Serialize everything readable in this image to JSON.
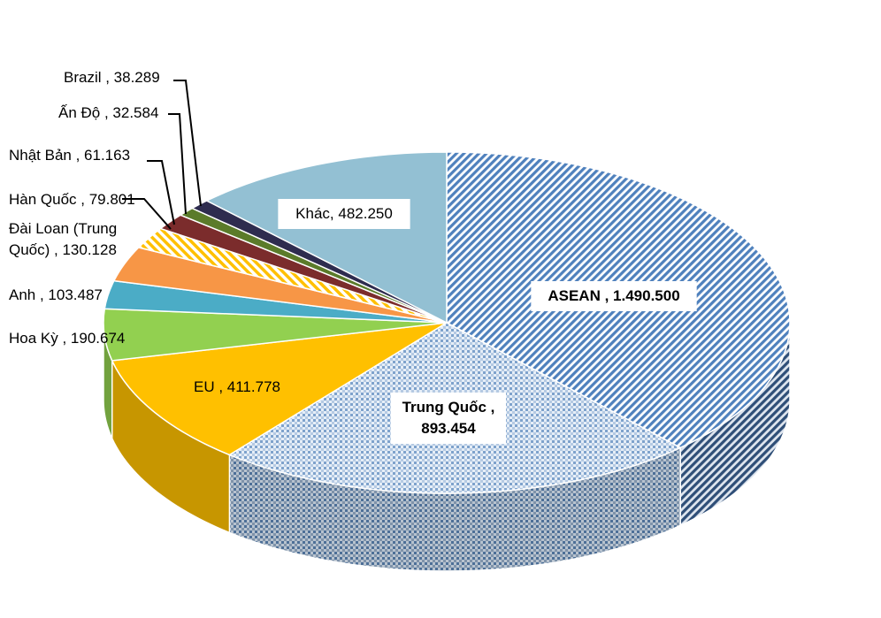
{
  "chart_data": {
    "type": "pie",
    "style": "3d-pie",
    "slices": [
      {
        "label": "ASEAN",
        "value": 1490500,
        "display": "1.490.500",
        "color": "#4f81bd",
        "pattern": "diagonal-hatch",
        "label_style": "bold-box"
      },
      {
        "label": "Trung Quốc",
        "value": 893454,
        "display": "893.454",
        "color": "#9bb7d6",
        "pattern": "dotted-grid",
        "label_style": "bold-box"
      },
      {
        "label": "EU",
        "value": 411778,
        "display": "411.778",
        "color": "#ffc000",
        "pattern": "solid",
        "label_style": "inside"
      },
      {
        "label": "Hoa Kỳ",
        "value": 190674,
        "display": "190.674",
        "color": "#92d050",
        "pattern": "solid",
        "label_style": "outside"
      },
      {
        "label": "Anh",
        "value": 103487,
        "display": "103.487",
        "color": "#4bacc6",
        "pattern": "solid",
        "label_style": "outside"
      },
      {
        "label": "Đài Loan (Trung Quốc)",
        "value": 130128,
        "display": "130.128",
        "color": "#f79646",
        "pattern": "solid",
        "label_style": "outside"
      },
      {
        "label": "Hàn Quốc",
        "value": 79801,
        "display": "79.801",
        "color": "#ffc000",
        "pattern": "stripe",
        "label_style": "leader"
      },
      {
        "label": "Nhật Bản",
        "value": 61163,
        "display": "61.163",
        "color": "#7b2c2c",
        "pattern": "solid",
        "label_style": "leader"
      },
      {
        "label": "Ấn Độ",
        "value": 32584,
        "display": "32.584",
        "color": "#5b7b2a",
        "pattern": "solid",
        "label_style": "leader"
      },
      {
        "label": "Brazil",
        "value": 38289,
        "display": "38.289",
        "color": "#2e2c4f",
        "pattern": "solid",
        "label_style": "leader"
      },
      {
        "label": "Khác",
        "value": 482250,
        "display": "482.250",
        "color": "#93c0d3",
        "pattern": "solid",
        "label_style": "box"
      }
    ],
    "title": "",
    "legend": "none"
  }
}
